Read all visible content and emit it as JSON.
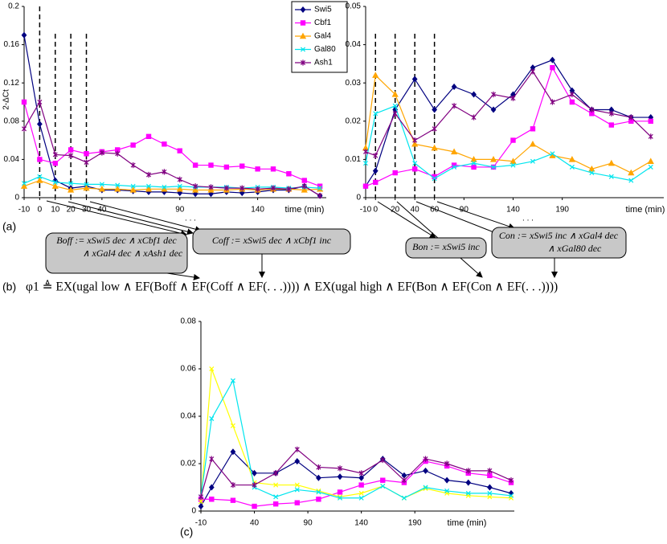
{
  "chart_data": [
    {
      "type": "line",
      "x": [
        -10,
        0,
        10,
        20,
        30,
        40,
        50,
        60,
        70,
        80,
        90,
        100,
        110,
        120,
        130,
        140,
        150,
        160,
        170,
        180
      ],
      "xlim": [
        -10,
        182
      ],
      "ylim": [
        0,
        0.2
      ],
      "xticks": [
        -10,
        0,
        10,
        20,
        30,
        40,
        90,
        140
      ],
      "yticks": [
        0,
        0.04,
        0.08,
        0.12,
        0.16,
        0.2
      ],
      "xlabel": "time (min)",
      "ylabel": "2-ΔCt",
      "legend": "top-right",
      "dashed_lines": [
        0,
        10,
        20,
        30
      ],
      "ellipsis": ". . .",
      "series": [
        {
          "name": "Swi5",
          "color": "#000080",
          "marker": "diamond",
          "values": [
            0.17,
            0.077,
            0.018,
            0.01,
            0.012,
            0.008,
            0.008,
            0.007,
            0.006,
            0.006,
            0.005,
            0.004,
            0.004,
            0.006,
            0.005,
            0.006,
            0.008,
            0.008,
            0.012,
            0.002
          ]
        },
        {
          "name": "Cbf1",
          "color": "#ff00ff",
          "marker": "square",
          "values": [
            0.1,
            0.04,
            0.036,
            0.05,
            0.046,
            0.048,
            0.05,
            0.055,
            0.064,
            0.056,
            0.049,
            0.034,
            0.034,
            0.032,
            0.033,
            0.03,
            0.03,
            0.025,
            0.018,
            0.012
          ]
        },
        {
          "name": "Gal4",
          "color": "#ffa500",
          "marker": "triangle",
          "values": [
            0.012,
            0.018,
            0.012,
            0.008,
            0.01,
            0.009,
            0.009,
            0.008,
            0.009,
            0.009,
            0.009,
            0.008,
            0.008,
            0.008,
            0.009,
            0.008,
            0.009,
            0.009,
            0.008,
            0.009
          ]
        },
        {
          "name": "Gal80",
          "color": "#00e5ee",
          "marker": "x",
          "values": [
            0.015,
            0.022,
            0.016,
            0.015,
            0.014,
            0.014,
            0.013,
            0.012,
            0.012,
            0.011,
            0.012,
            0.011,
            0.011,
            0.011,
            0.01,
            0.011,
            0.011,
            0.01,
            0.011,
            0.01
          ]
        },
        {
          "name": "Ash1",
          "color": "#800080",
          "marker": "star",
          "values": [
            0.072,
            0.1,
            0.045,
            0.044,
            0.037,
            0.047,
            0.046,
            0.034,
            0.024,
            0.027,
            0.019,
            0.012,
            0.011,
            0.01,
            0.01,
            0.009,
            0.01,
            0.009,
            0.012,
            0.002
          ]
        }
      ]
    },
    {
      "type": "line",
      "x": [
        -10,
        0,
        20,
        40,
        60,
        80,
        100,
        120,
        140,
        160,
        180,
        200,
        220,
        240,
        260,
        280
      ],
      "xlim": [
        -10,
        290
      ],
      "ylim": [
        0,
        0.05
      ],
      "xticks": [
        -10,
        0,
        20,
        40,
        60,
        90,
        140,
        190
      ],
      "yticks": [
        0,
        0.01,
        0.02,
        0.03,
        0.04,
        0.05
      ],
      "xlabel": "time (min)",
      "dashed_lines": [
        0,
        20,
        40,
        60
      ],
      "ellipsis": ". . .",
      "series": [
        {
          "color": "#000080",
          "marker": "diamond",
          "values": [
            0.003,
            0.007,
            0.023,
            0.031,
            0.023,
            0.029,
            0.027,
            0.023,
            0.027,
            0.034,
            0.036,
            0.028,
            0.023,
            0.023,
            0.021,
            0.021
          ]
        },
        {
          "color": "#ff00ff",
          "marker": "square",
          "values": [
            0.003,
            0.004,
            0.0065,
            0.0075,
            0.0055,
            0.0085,
            0.008,
            0.008,
            0.015,
            0.018,
            0.034,
            0.025,
            0.022,
            0.019,
            0.02,
            0.02
          ]
        },
        {
          "color": "#ffa500",
          "marker": "triangle",
          "values": [
            0.013,
            0.032,
            0.027,
            0.014,
            0.013,
            0.012,
            0.01,
            0.01,
            0.0095,
            0.014,
            0.011,
            0.01,
            0.0075,
            0.009,
            0.0065,
            0.0095
          ]
        },
        {
          "color": "#00e5ee",
          "marker": "x",
          "values": [
            0.009,
            0.022,
            0.024,
            0.009,
            0.005,
            0.008,
            0.009,
            0.008,
            0.0085,
            0.0095,
            0.0115,
            0.008,
            0.0065,
            0.0055,
            0.0045,
            0.008
          ]
        },
        {
          "color": "#800080",
          "marker": "star",
          "values": [
            0.012,
            0.011,
            0.022,
            0.015,
            0.018,
            0.024,
            0.021,
            0.027,
            0.026,
            0.033,
            0.025,
            0.027,
            0.023,
            0.022,
            0.021,
            0.016
          ]
        }
      ]
    },
    {
      "type": "line",
      "x": [
        -10,
        0,
        20,
        40,
        60,
        80,
        100,
        120,
        140,
        160,
        180,
        200,
        220,
        240,
        260,
        280
      ],
      "xlim": [
        -10,
        280
      ],
      "ylim": [
        0,
        0.08
      ],
      "xticks": [
        -10,
        40,
        90,
        140,
        190
      ],
      "yticks": [
        0,
        0.02,
        0.04,
        0.06,
        0.08
      ],
      "xlabel": "time (min)",
      "series": [
        {
          "color": "#000080",
          "marker": "diamond",
          "values": [
            0.002,
            0.01,
            0.025,
            0.016,
            0.016,
            0.021,
            0.014,
            0.0145,
            0.014,
            0.022,
            0.015,
            0.017,
            0.013,
            0.012,
            0.01,
            0.0075
          ]
        },
        {
          "color": "#ff00ff",
          "marker": "square",
          "values": [
            0.005,
            0.005,
            0.0045,
            0.002,
            0.003,
            0.0035,
            0.005,
            0.008,
            0.011,
            0.013,
            0.012,
            0.021,
            0.019,
            0.016,
            0.015,
            0.012
          ]
        },
        {
          "color": "#ffff00",
          "marker": "x",
          "values": [
            0.004,
            0.06,
            0.036,
            0.012,
            0.011,
            0.011,
            0.0085,
            0.006,
            0.0075,
            0.0105,
            0.0055,
            0.0095,
            0.0075,
            0.0065,
            0.006,
            0.0055
          ]
        },
        {
          "color": "#00e5ee",
          "marker": "x",
          "values": [
            0.006,
            0.039,
            0.055,
            0.01,
            0.006,
            0.009,
            0.008,
            0.0055,
            0.0055,
            0.0105,
            0.0055,
            0.01,
            0.0085,
            0.0075,
            0.0075,
            0.0065
          ]
        },
        {
          "color": "#800080",
          "marker": "star",
          "values": [
            0.006,
            0.022,
            0.011,
            0.011,
            0.016,
            0.026,
            0.0185,
            0.018,
            0.016,
            0.0215,
            0.013,
            0.022,
            0.02,
            0.017,
            0.017,
            0.013
          ]
        }
      ]
    }
  ],
  "panel_labels": [
    "(a)",
    "(b)",
    "(c)"
  ],
  "boxes": [
    {
      "lines": [
        "Boff := xSwi5 dec ∧ xCbf1 dec",
        "∧ xGal4 dec ∧ xAsh1 dec"
      ]
    },
    {
      "lines": [
        "Coff := xSwi5 dec ∧ xCbf1 inc"
      ]
    },
    {
      "lines": [
        "Bon := xSwi5 inc"
      ]
    },
    {
      "lines": [
        "Con := xSwi5 inc ∧ xGal4 dec",
        "∧ xGal80 dec"
      ]
    }
  ],
  "formula": "φ1 ≜ EX(ugal low ∧ EF(Boff ∧ EF(Coff ∧ EF(. . .)))) ∧ EX(ugal high ∧ EF(Bon ∧ EF(Con ∧ EF(. . .))))"
}
